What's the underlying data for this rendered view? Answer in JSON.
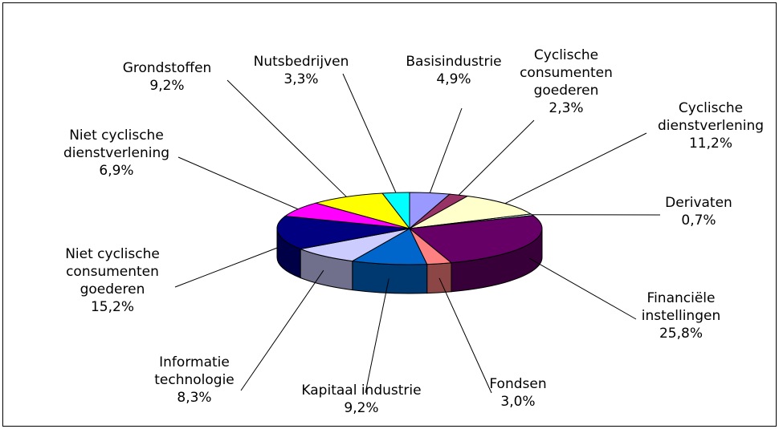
{
  "chart_data": {
    "type": "pie",
    "categories": [
      "Basisindustrie",
      "Cyclische\nconsumenten\ngoederen",
      "Cyclische\ndienstverlening",
      "Derivaten",
      "Financiële\ninstellingen",
      "Fondsen",
      "Kapitaal industrie",
      "Informatie\ntechnologie",
      "Niet cyclische\nconsumenten\ngoederen",
      "Niet cyclische\ndienstverlening",
      "Grondstoffen",
      "Nutsbedrijven"
    ],
    "values": [
      4.9,
      2.3,
      11.2,
      0.7,
      25.8,
      3.0,
      9.2,
      8.3,
      15.2,
      6.9,
      9.2,
      3.3
    ],
    "value_labels": [
      "4,9%",
      "2,3%",
      "11,2%",
      "0,7%",
      "25,8%",
      "3,0%",
      "9,2%",
      "8,3%",
      "15,2%",
      "6,9%",
      "9,2%",
      "3,3%"
    ],
    "colors": [
      "#9999ff",
      "#993366",
      "#ffffcc",
      "#ccffff",
      "#660066",
      "#ff8080",
      "#0066cc",
      "#ccccff",
      "#000080",
      "#ff00ff",
      "#ffff00",
      "#00ffff"
    ]
  }
}
